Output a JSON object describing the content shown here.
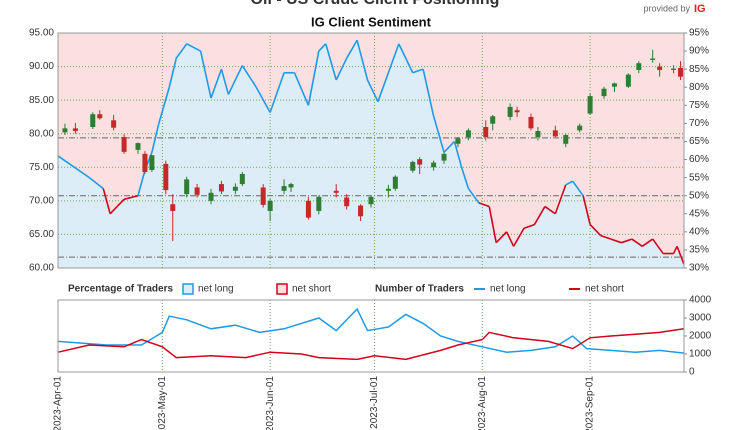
{
  "header": {
    "title": "Oil - US Crude Client Positioning",
    "logo_text": "provided by",
    "logo_brand": "IG"
  },
  "chart_data": [
    {
      "type": "candlestick",
      "subtitle": "IG Client Sentiment",
      "x": [
        "2023-04-03",
        "2023-04-06",
        "2023-04-11",
        "2023-04-13",
        "2023-04-17",
        "2023-04-20",
        "2023-04-24",
        "2023-04-26",
        "2023-04-28",
        "2023-05-02",
        "2023-05-04",
        "2023-05-08",
        "2023-05-11",
        "2023-05-15",
        "2023-05-18",
        "2023-05-22",
        "2023-05-24",
        "2023-05-30",
        "2023-06-01",
        "2023-06-05",
        "2023-06-07",
        "2023-06-12",
        "2023-06-15",
        "2023-06-20",
        "2023-06-23",
        "2023-06-27",
        "2023-06-30",
        "2023-07-05",
        "2023-07-07",
        "2023-07-12",
        "2023-07-14",
        "2023-07-18",
        "2023-07-21",
        "2023-07-25",
        "2023-07-28",
        "2023-08-02",
        "2023-08-04",
        "2023-08-09",
        "2023-08-11",
        "2023-08-15",
        "2023-08-17",
        "2023-08-22",
        "2023-08-25",
        "2023-08-29",
        "2023-09-01",
        "2023-09-05",
        "2023-09-08",
        "2023-09-12",
        "2023-09-15",
        "2023-09-19",
        "2023-09-21",
        "2023-09-25",
        "2023-09-27"
      ],
      "open": [
        80.2,
        80.8,
        81.0,
        82.9,
        82.0,
        79.5,
        77.6,
        77.0,
        74.6,
        75.5,
        69.5,
        71.0,
        72.0,
        70.0,
        72.5,
        71.5,
        72.5,
        72.0,
        68.5,
        71.5,
        72.0,
        70.0,
        68.5,
        71.5,
        70.5,
        69.3,
        69.5,
        71.5,
        71.8,
        74.5,
        76.2,
        75.0,
        76.0,
        78.5,
        79.5,
        81.0,
        81.5,
        82.5,
        83.5,
        82.5,
        79.5,
        80.5,
        78.5,
        80.5,
        83.0,
        85.6,
        87.0,
        87.0,
        89.5,
        91.0,
        90.0,
        89.5,
        89.8
      ],
      "high": [
        81.5,
        81.6,
        83.2,
        83.5,
        82.8,
        79.9,
        78.7,
        77.4,
        76.8,
        76.0,
        71.0,
        73.6,
        72.5,
        71.8,
        73.0,
        72.6,
        74.3,
        72.5,
        70.3,
        73.2,
        72.7,
        70.6,
        70.8,
        72.5,
        71.0,
        69.5,
        70.8,
        72.4,
        73.8,
        76.0,
        76.5,
        76.0,
        77.2,
        79.5,
        80.8,
        82.0,
        82.8,
        84.5,
        84.0,
        83.0,
        81.0,
        81.2,
        80.0,
        81.5,
        86.0,
        87.0,
        87.6,
        89.0,
        90.8,
        92.5,
        90.5,
        90.2,
        90.8
      ],
      "low": [
        79.8,
        80.0,
        80.7,
        82.1,
        80.5,
        77.0,
        77.0,
        74.0,
        74.3,
        71.0,
        64.0,
        70.5,
        70.5,
        69.5,
        71.0,
        71.0,
        72.2,
        69.0,
        67.0,
        71.0,
        71.3,
        67.2,
        68.0,
        70.5,
        68.7,
        67.0,
        69.0,
        70.5,
        71.5,
        74.2,
        74.0,
        74.5,
        75.5,
        78.0,
        79.0,
        79.0,
        80.5,
        82.0,
        82.5,
        80.5,
        79.0,
        79.5,
        78.0,
        80.2,
        82.8,
        85.2,
        86.2,
        86.8,
        89.0,
        90.6,
        88.5,
        89.0,
        88.0
      ],
      "close": [
        80.8,
        80.4,
        82.9,
        82.3,
        80.9,
        77.3,
        78.6,
        74.3,
        76.8,
        71.6,
        68.5,
        73.2,
        70.9,
        71.2,
        71.4,
        72.1,
        74.0,
        69.4,
        70.0,
        72.2,
        72.5,
        67.5,
        70.6,
        71.2,
        69.2,
        67.7,
        70.6,
        71.8,
        73.6,
        75.8,
        75.4,
        75.7,
        77.0,
        79.3,
        80.5,
        79.5,
        82.6,
        84.0,
        83.2,
        80.8,
        80.4,
        79.6,
        79.8,
        81.2,
        85.6,
        86.7,
        87.5,
        88.8,
        90.5,
        91.2,
        89.5,
        89.7,
        88.5
      ],
      "up_color": "#2e7d32",
      "down_color": "#c62828",
      "xlim": [
        "2023-04-01",
        "2023-09-28"
      ],
      "xticks": [
        {
          "value": "2023-04-01",
          "label": "2023-Apr-01"
        },
        {
          "value": "2023-05-01",
          "label": "2023-May-01"
        },
        {
          "value": "2023-06-01",
          "label": "2023-Jun-01"
        },
        {
          "value": "2023-07-01",
          "label": "2023-Jul-01"
        },
        {
          "value": "2023-08-01",
          "label": "2023-Aug-01"
        },
        {
          "value": "2023-09-01",
          "label": "2023-Sep-01"
        }
      ],
      "ylim": [
        60,
        95
      ],
      "yticks": [
        {
          "value": 60,
          "label": "60.00"
        },
        {
          "value": 65,
          "label": "65.00"
        },
        {
          "value": 70,
          "label": "70.00"
        },
        {
          "value": 75,
          "label": "75.00"
        },
        {
          "value": 80,
          "label": "80.00"
        },
        {
          "value": 85,
          "label": "85.00"
        },
        {
          "value": 90,
          "label": "90.00"
        },
        {
          "value": 95,
          "label": "95.00"
        }
      ],
      "y2lim": [
        30,
        95
      ],
      "y2ticks": [
        {
          "value": 30,
          "label": "30%"
        },
        {
          "value": 35,
          "label": "35%"
        },
        {
          "value": 40,
          "label": "40%"
        },
        {
          "value": 45,
          "label": "45%"
        },
        {
          "value": 50,
          "label": "50%"
        },
        {
          "value": 55,
          "label": "55%"
        },
        {
          "value": 60,
          "label": "60%"
        },
        {
          "value": 65,
          "label": "65%"
        },
        {
          "value": 70,
          "label": "70%"
        },
        {
          "value": 75,
          "label": "75%"
        },
        {
          "value": 80,
          "label": "80%"
        },
        {
          "value": 85,
          "label": "85%"
        },
        {
          "value": 90,
          "label": "90%"
        },
        {
          "value": 95,
          "label": "95%"
        }
      ],
      "y2_ref_lines": [
        66,
        50,
        33
      ],
      "grid": true,
      "grid_color": "#6aa84f",
      "legend_title": "Percentage of Traders",
      "series": [
        {
          "name": "net long",
          "axis": "y2",
          "color": "#1e9be6",
          "fill": "#dcedf8",
          "x": [
            "2023-04-01",
            "2023-04-10",
            "2023-04-14",
            "2023-04-16",
            "2023-04-20",
            "2023-04-24",
            "2023-04-26",
            "2023-04-28",
            "2023-04-30",
            "2023-05-03",
            "2023-05-05",
            "2023-05-08",
            "2023-05-12",
            "2023-05-15",
            "2023-05-18",
            "2023-05-20",
            "2023-05-24",
            "2023-05-28",
            "2023-06-01",
            "2023-06-05",
            "2023-06-08",
            "2023-06-12",
            "2023-06-15",
            "2023-06-17",
            "2023-06-20",
            "2023-06-23",
            "2023-06-26",
            "2023-06-29",
            "2023-07-02",
            "2023-07-05",
            "2023-07-08",
            "2023-07-12",
            "2023-07-15",
            "2023-07-18",
            "2023-07-21",
            "2023-07-24",
            "2023-07-26",
            "2023-07-28",
            "2023-07-31",
            "2023-08-03",
            "2023-08-05",
            "2023-08-08",
            "2023-08-10",
            "2023-08-13",
            "2023-08-16",
            "2023-08-19",
            "2023-08-22",
            "2023-08-25",
            "2023-08-27",
            "2023-08-30",
            "2023-09-01",
            "2023-09-04",
            "2023-09-07",
            "2023-09-10",
            "2023-09-13",
            "2023-09-16",
            "2023-09-19",
            "2023-09-22",
            "2023-09-25",
            "2023-09-26",
            "2023-09-28"
          ],
          "values": [
            61,
            55,
            52,
            45,
            49,
            50,
            57,
            62,
            70,
            80,
            88,
            92,
            90,
            77,
            85,
            78,
            86,
            80,
            73,
            84,
            84,
            75,
            90,
            92,
            82,
            88,
            93,
            82,
            76,
            84,
            92,
            84,
            85,
            72,
            62,
            65,
            58,
            52,
            48,
            47,
            37,
            40,
            36,
            41,
            42,
            47,
            45,
            53,
            54,
            50,
            42,
            39,
            38,
            37,
            38,
            36,
            38,
            34,
            34,
            36,
            31
          ]
        },
        {
          "name": "net short",
          "color": "#d0021b",
          "fill": "#fbe0e1"
        }
      ]
    },
    {
      "type": "line",
      "legend_title": "Number of Traders",
      "ylim": [
        0,
        4000
      ],
      "yticks": [
        0,
        1000,
        2000,
        3000,
        4000
      ],
      "series": [
        {
          "name": "net long",
          "color": "#1e9be6",
          "x": [
            "2023-04-01",
            "2023-04-15",
            "2023-04-25",
            "2023-05-01",
            "2023-05-03",
            "2023-05-08",
            "2023-05-15",
            "2023-05-22",
            "2023-05-29",
            "2023-06-05",
            "2023-06-15",
            "2023-06-20",
            "2023-06-26",
            "2023-06-29",
            "2023-07-05",
            "2023-07-10",
            "2023-07-15",
            "2023-07-20",
            "2023-07-25",
            "2023-08-01",
            "2023-08-08",
            "2023-08-15",
            "2023-08-22",
            "2023-08-27",
            "2023-08-31",
            "2023-09-07",
            "2023-09-14",
            "2023-09-21",
            "2023-09-28"
          ],
          "values": [
            1700,
            1500,
            1500,
            2200,
            3100,
            2900,
            2400,
            2600,
            2200,
            2400,
            3000,
            2300,
            3500,
            2300,
            2500,
            3200,
            2700,
            2000,
            1700,
            1400,
            1100,
            1200,
            1400,
            2000,
            1300,
            1200,
            1100,
            1200,
            1050
          ]
        },
        {
          "name": "net short",
          "color": "#d0021b",
          "x": [
            "2023-04-01",
            "2023-04-10",
            "2023-04-20",
            "2023-04-25",
            "2023-05-01",
            "2023-05-05",
            "2023-05-15",
            "2023-05-25",
            "2023-06-01",
            "2023-06-10",
            "2023-06-15",
            "2023-06-26",
            "2023-07-01",
            "2023-07-10",
            "2023-07-20",
            "2023-07-25",
            "2023-08-01",
            "2023-08-03",
            "2023-08-10",
            "2023-08-20",
            "2023-08-27",
            "2023-09-01",
            "2023-09-07",
            "2023-09-14",
            "2023-09-21",
            "2023-09-28"
          ],
          "values": [
            1100,
            1500,
            1400,
            1800,
            1400,
            800,
            900,
            800,
            1100,
            1000,
            800,
            700,
            900,
            700,
            1200,
            1500,
            1800,
            2200,
            1900,
            1700,
            1300,
            1900,
            2000,
            2100,
            2200,
            2400
          ]
        }
      ]
    }
  ]
}
